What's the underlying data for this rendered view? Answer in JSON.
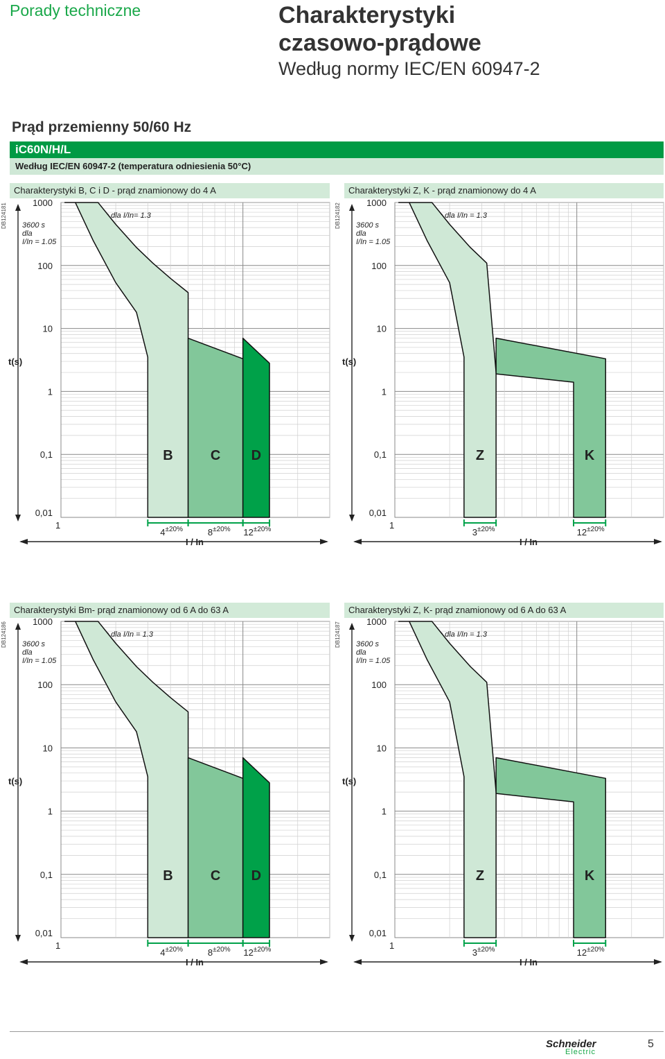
{
  "header": {
    "section": "Porady techniczne",
    "title_line1": "Charakterystyki",
    "title_line2": "czasowo-prądowe",
    "subtitle": "Według normy IEC/EN 60947-2"
  },
  "main_heading": "Prąd przemienny 50/60 Hz",
  "product": "iC60N/H/L",
  "norm": "Według IEC/EN 60947-2 (temperatura odniesienia 50°C)",
  "colors": {
    "brand_green": "#009a44",
    "curve_light": "#cfe8d6",
    "curve_medium": "#82c79a",
    "curve_dark": "#00a149",
    "header_band": "#d2ead8"
  },
  "footer": {
    "logo_main": "Schneider",
    "logo_sub": "Electric",
    "page_number": "5"
  },
  "chart_data": [
    {
      "type": "area",
      "id": "DB124181",
      "title": "Charakterystyki B, C i D - prąd znamionowy do 4 A",
      "ylabel": "t(s)",
      "xlabel": "I / In",
      "y_scale": "log",
      "ylim": [
        0.01,
        1000
      ],
      "y_ticks": [
        "1000",
        "100",
        "10",
        "1",
        "0,1",
        "0,01"
      ],
      "x_scale": "log",
      "xlim": [
        1,
        30
      ],
      "x_tick_first": "1",
      "annotation_left": [
        "3600 s",
        "dla",
        "I/In = 1.05"
      ],
      "annotation_right": "3600 s dla I/In= 1.3",
      "curves": [
        {
          "name": "B",
          "instant_trip": [
            3,
            5
          ],
          "label": "4",
          "tolerance": "±20%"
        },
        {
          "name": "C",
          "instant_trip": [
            5,
            10
          ],
          "label": "8",
          "tolerance": "±20%"
        },
        {
          "name": "D",
          "instant_trip": [
            10,
            14
          ],
          "label": "12",
          "tolerance": "±20%"
        }
      ]
    },
    {
      "type": "area",
      "id": "DB124182",
      "title": "Charakterystyki Z, K - prąd znamionowy do 4 A",
      "ylabel": "t(s)",
      "xlabel": "I / In",
      "y_scale": "log",
      "ylim": [
        0.01,
        1000
      ],
      "y_ticks": [
        "1000",
        "100",
        "10",
        "1",
        "0,1",
        "0,01"
      ],
      "x_scale": "log",
      "xlim": [
        1,
        30
      ],
      "x_tick_first": "1",
      "annotation_left": [
        "3600 s",
        "dla",
        "I/In = 1.05"
      ],
      "annotation_right": "3600 s dla I/In = 1.3",
      "curves": [
        {
          "name": "Z",
          "instant_trip": [
            2.4,
            3.6
          ],
          "label": "3",
          "tolerance": "±20%"
        },
        {
          "name": "K",
          "instant_trip": [
            9.6,
            14.4
          ],
          "label": "12",
          "tolerance": "±20%"
        }
      ]
    },
    {
      "type": "area",
      "id": "DB124186",
      "title": "Charakterystyki Bm- prąd znamionowy od 6 A do 63 A",
      "ylabel": "t(s)",
      "xlabel": "I / In",
      "y_scale": "log",
      "ylim": [
        0.01,
        1000
      ],
      "y_ticks": [
        "1000",
        "100",
        "10",
        "1",
        "0,1",
        "0,01"
      ],
      "x_scale": "log",
      "xlim": [
        1,
        30
      ],
      "x_tick_first": "1",
      "annotation_left": [
        "3600 s",
        "dla",
        "I/In = 1.05"
      ],
      "annotation_right": "3600 s dla I/In = 1.3",
      "curves": [
        {
          "name": "B",
          "instant_trip": [
            3,
            5
          ],
          "label": "4",
          "tolerance": "±20%"
        },
        {
          "name": "C",
          "instant_trip": [
            5,
            10
          ],
          "label": "8",
          "tolerance": "±20%"
        },
        {
          "name": "D",
          "instant_trip": [
            10,
            14
          ],
          "label": "12",
          "tolerance": "±20%"
        }
      ]
    },
    {
      "type": "area",
      "id": "DB124187",
      "title": "Charakterystyki Z, K- prąd znamionowy od 6 A do 63 A",
      "ylabel": "t(s)",
      "xlabel": "I / In",
      "y_scale": "log",
      "ylim": [
        0.01,
        1000
      ],
      "y_ticks": [
        "1000",
        "100",
        "10",
        "1",
        "0,1",
        "0,01"
      ],
      "x_scale": "log",
      "xlim": [
        1,
        30
      ],
      "x_tick_first": "1",
      "annotation_left": [
        "3600 s",
        "dla",
        "I/In = 1.05"
      ],
      "annotation_right": "3600 s dla I/In = 1.3",
      "curves": [
        {
          "name": "Z",
          "instant_trip": [
            2.4,
            3.6
          ],
          "label": "3",
          "tolerance": "±20%"
        },
        {
          "name": "K",
          "instant_trip": [
            9.6,
            14.4
          ],
          "label": "12",
          "tolerance": "±20%"
        }
      ]
    }
  ]
}
